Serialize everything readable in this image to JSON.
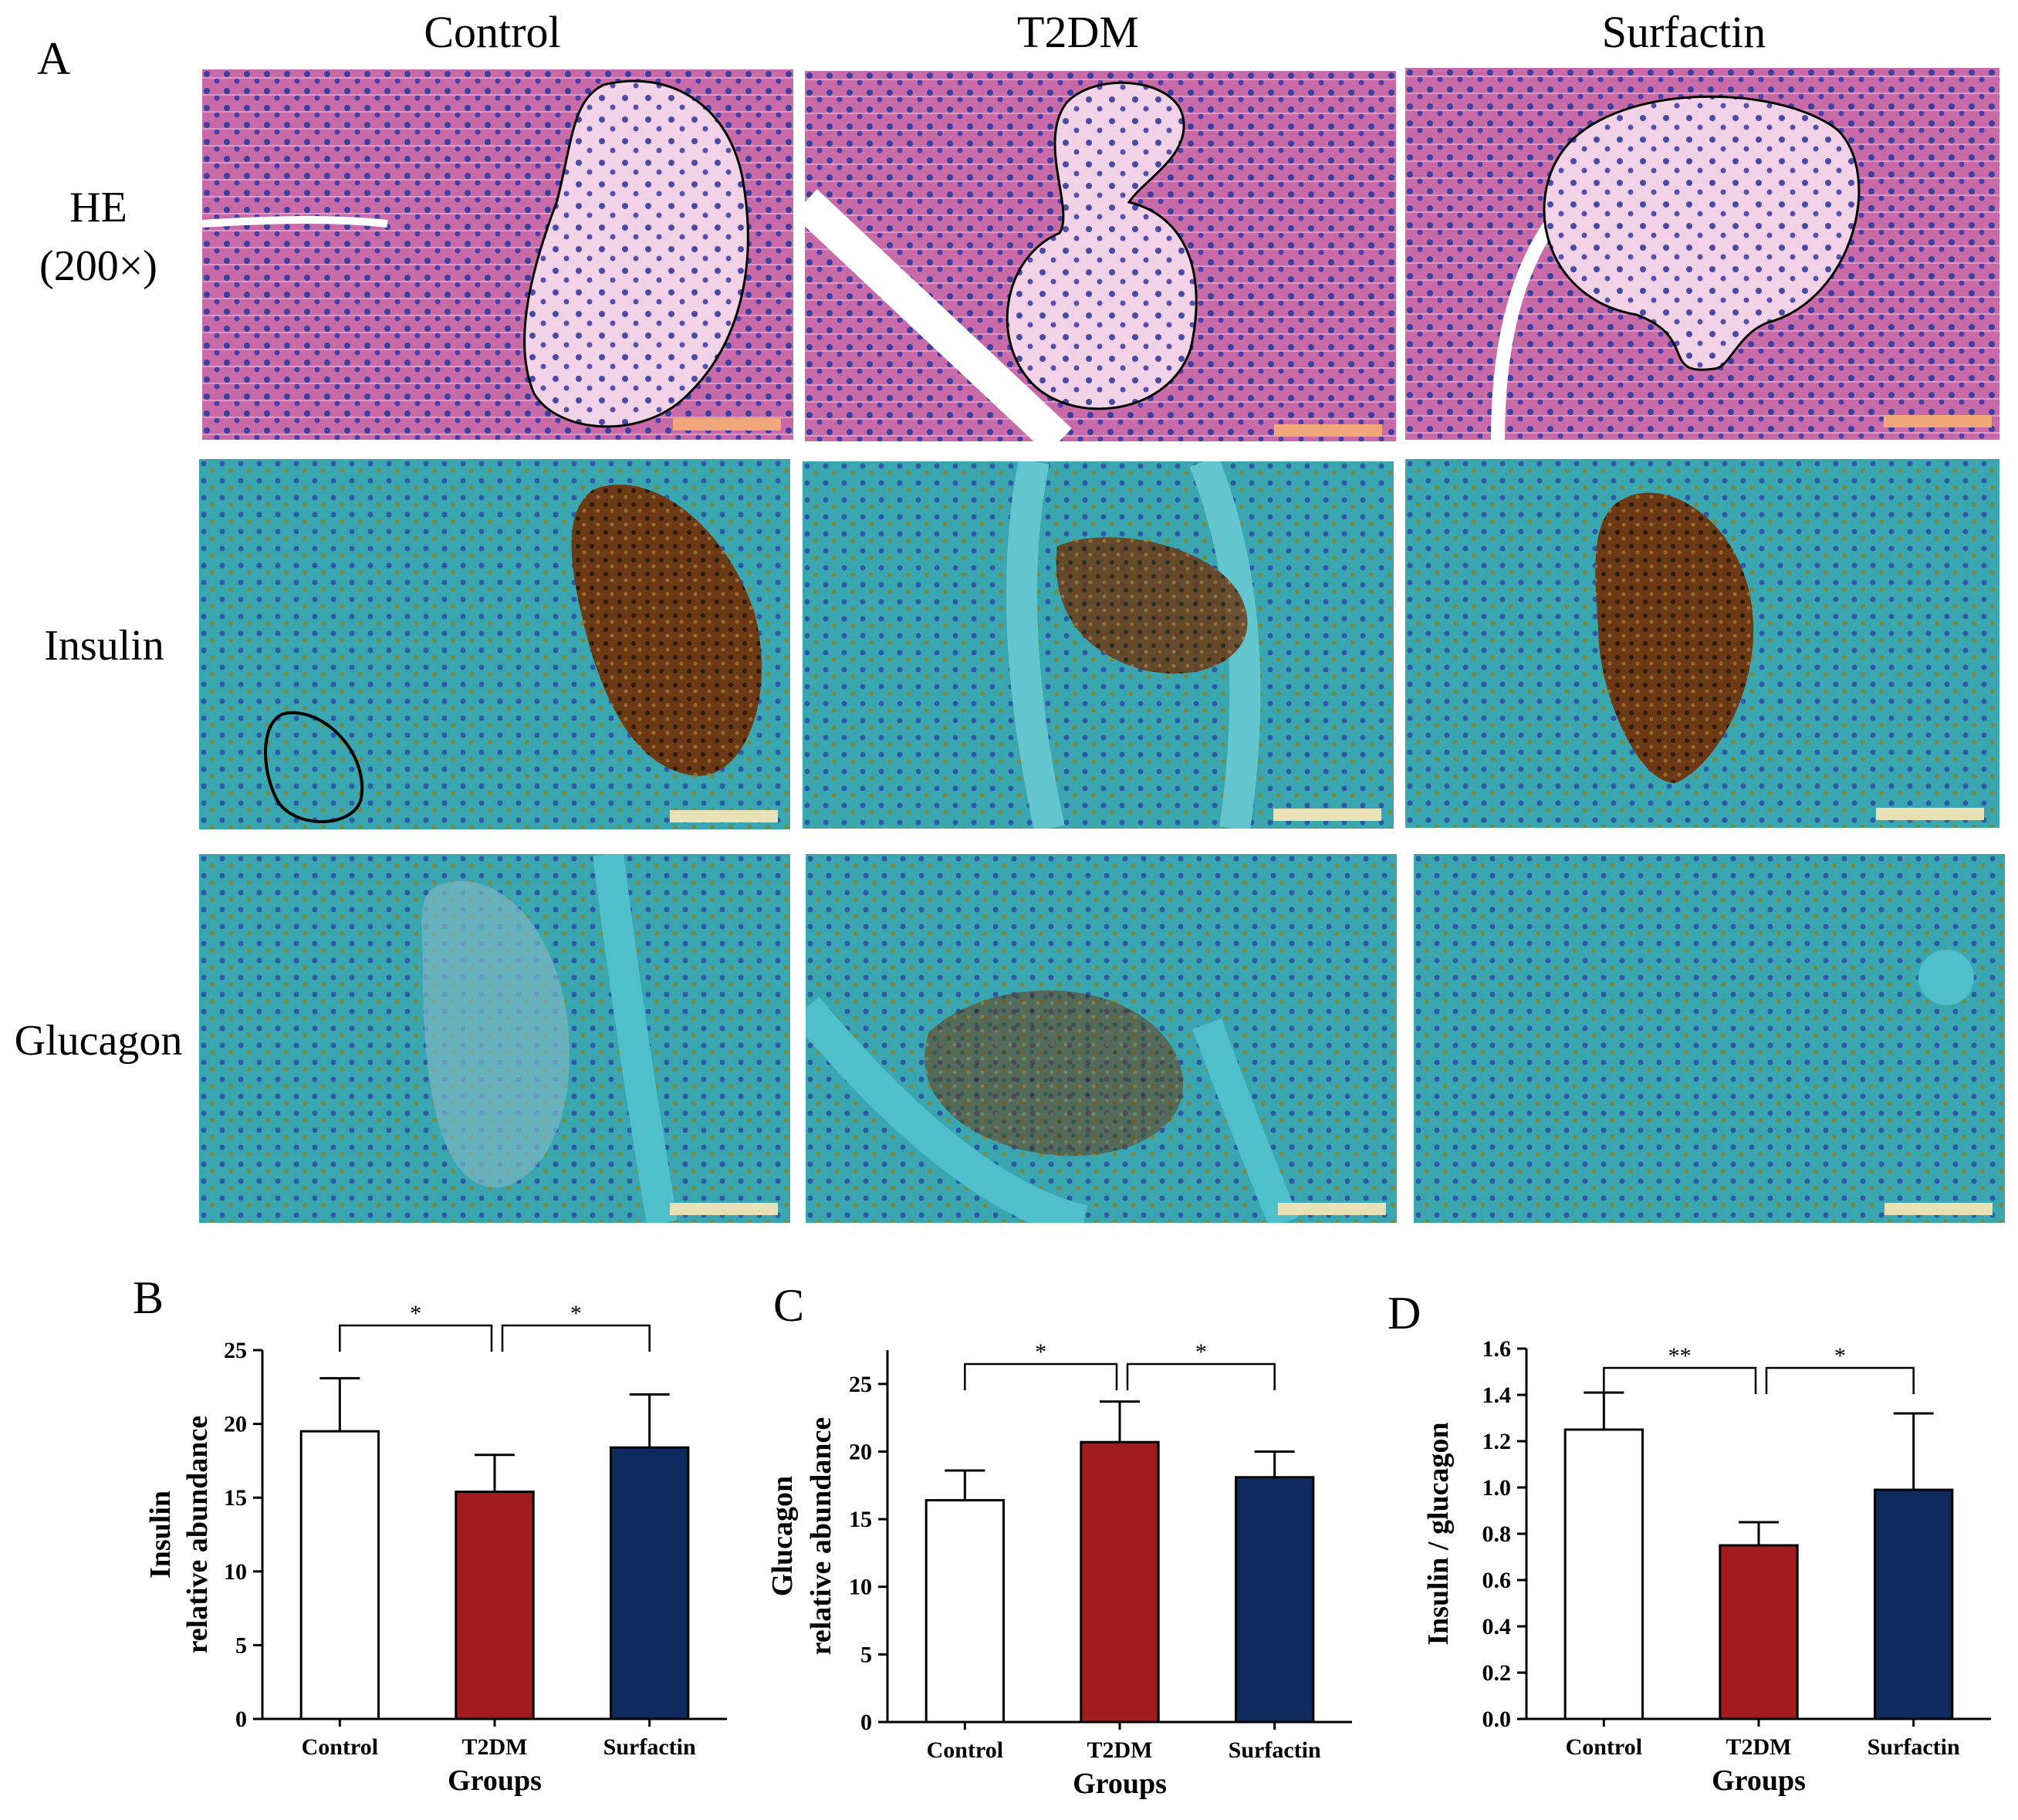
{
  "figure": {
    "panel_a_letter": "A",
    "columns": [
      "Control",
      "T2DM",
      "Surfactin"
    ],
    "rows": [
      {
        "label_line1": "HE",
        "label_line2": "(200×)"
      },
      {
        "label_line1": "Insulin",
        "label_line2": ""
      },
      {
        "label_line1": "Glucagon",
        "label_line2": ""
      }
    ],
    "colors": {
      "he_tissue": "#c86aa8",
      "he_islet": "#f2d2e6",
      "ihc_background": "#3aa6b0",
      "ihc_stain": "#6b3a14",
      "scale_bar": "#f2a77a",
      "scale_bar_ihc": "#e7e1b5",
      "control_bar": "#ffffff",
      "t2dm_bar": "#a01c1e",
      "surfactin_bar": "#0f2a5e"
    }
  },
  "chart_data": [
    {
      "letter": "B",
      "type": "bar",
      "categories": [
        "Control",
        "T2DM",
        "Surfactin"
      ],
      "values": [
        19.5,
        15.4,
        18.4
      ],
      "errors": [
        3.6,
        2.5,
        3.6
      ],
      "ylim": [
        0,
        25
      ],
      "yticks": [
        "0",
        "5",
        "10",
        "15",
        "20",
        "25"
      ],
      "ylabel_line1": "Insulin",
      "ylabel_line2": "relative abundance",
      "xlabel": "Groups",
      "significance": [
        {
          "from": 0,
          "to": 1,
          "label": "*"
        },
        {
          "from": 1,
          "to": 2,
          "label": "*"
        }
      ]
    },
    {
      "letter": "C",
      "type": "bar",
      "categories": [
        "Control",
        "T2DM",
        "Surfactin"
      ],
      "values": [
        16.4,
        20.7,
        18.1
      ],
      "errors": [
        2.2,
        3.0,
        1.9
      ],
      "ylim": [
        0,
        27.5
      ],
      "yticks": [
        "0",
        "5",
        "10",
        "15",
        "20",
        "25"
      ],
      "ylabel_line1": "Glucagon",
      "ylabel_line2": "relative abundance",
      "xlabel": "Groups",
      "significance": [
        {
          "from": 0,
          "to": 1,
          "label": "*"
        },
        {
          "from": 1,
          "to": 2,
          "label": "*"
        }
      ]
    },
    {
      "letter": "D",
      "type": "bar",
      "categories": [
        "Control",
        "T2DM",
        "Surfactin"
      ],
      "values": [
        1.25,
        0.75,
        0.99
      ],
      "errors": [
        0.16,
        0.1,
        0.33
      ],
      "ylim": [
        0,
        1.6
      ],
      "yticks": [
        "0.0",
        "0.2",
        "0.4",
        "0.6",
        "0.8",
        "1.0",
        "1.2",
        "1.4",
        "1.6"
      ],
      "ylabel_line1": "Insulin / glucagon",
      "ylabel_line2": "",
      "xlabel": "Groups",
      "significance": [
        {
          "from": 0,
          "to": 1,
          "label": "**"
        },
        {
          "from": 1,
          "to": 2,
          "label": "*"
        }
      ]
    }
  ]
}
